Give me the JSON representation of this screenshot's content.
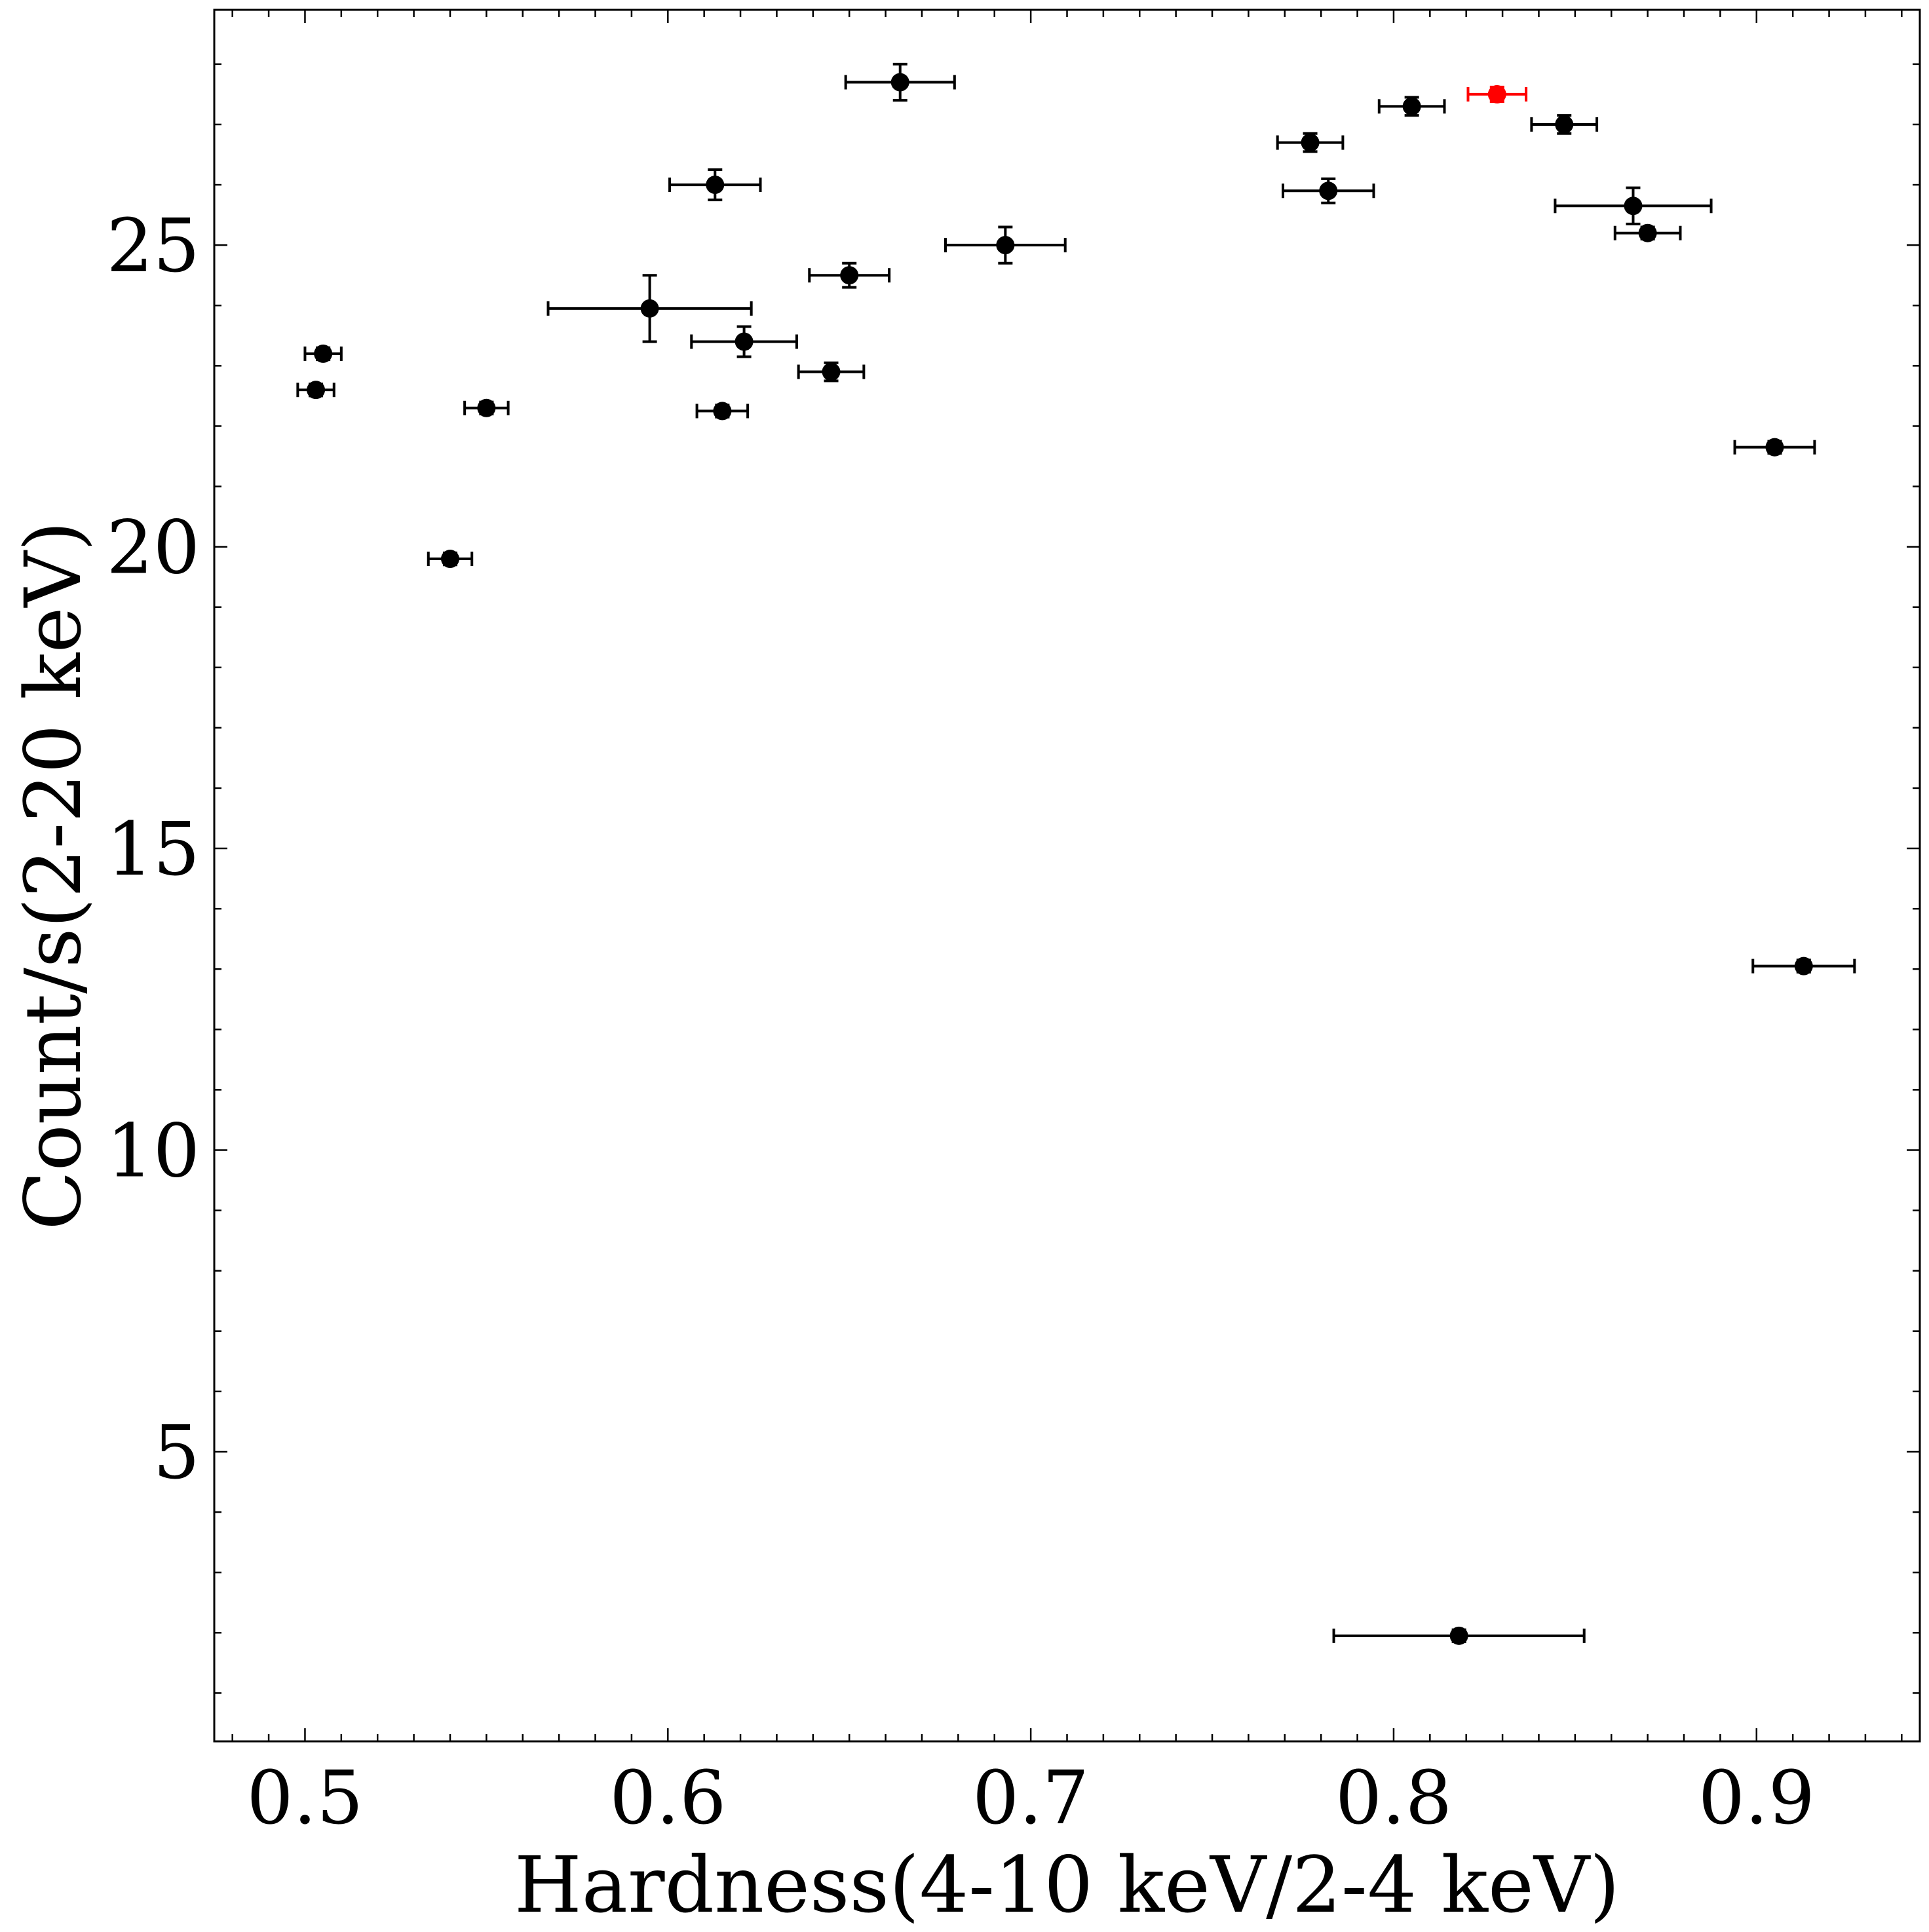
{
  "chart_data": {
    "type": "scatter",
    "title": "",
    "xlabel": "Hardness(4-10 keV/2-4 keV)",
    "ylabel": "Count/s(2-20 keV)",
    "xlim": [
      0.475,
      0.945
    ],
    "ylim": [
      0.2,
      28.9
    ],
    "grid": false,
    "legend": "none",
    "colors": {
      "default": "#000000",
      "highlight": "#ff0000"
    },
    "x_ticks": [
      0.5,
      0.6,
      0.7,
      0.8,
      0.9
    ],
    "x_tick_labels": [
      "0.5",
      "0.6",
      "0.7",
      "0.8",
      "0.9"
    ],
    "y_ticks": [
      5,
      10,
      15,
      20,
      25
    ],
    "y_tick_labels": [
      "5",
      "10",
      "15",
      "20",
      "25"
    ],
    "points": [
      {
        "x": 0.505,
        "y": 23.2,
        "xerr": 0.005,
        "yerr": 0.1,
        "highlight": false
      },
      {
        "x": 0.503,
        "y": 22.6,
        "xerr": 0.005,
        "yerr": 0.1,
        "highlight": false
      },
      {
        "x": 0.55,
        "y": 22.3,
        "xerr": 0.006,
        "yerr": 0.1,
        "highlight": false
      },
      {
        "x": 0.54,
        "y": 19.8,
        "xerr": 0.006,
        "yerr": 0.1,
        "highlight": false
      },
      {
        "x": 0.595,
        "y": 23.95,
        "xerr": 0.028,
        "yerr": 0.55,
        "highlight": false
      },
      {
        "x": 0.613,
        "y": 26.0,
        "xerr": 0.0125,
        "yerr": 0.25,
        "highlight": false
      },
      {
        "x": 0.621,
        "y": 23.4,
        "xerr": 0.0145,
        "yerr": 0.25,
        "highlight": false
      },
      {
        "x": 0.615,
        "y": 22.25,
        "xerr": 0.007,
        "yerr": 0.1,
        "highlight": false
      },
      {
        "x": 0.645,
        "y": 22.9,
        "xerr": 0.009,
        "yerr": 0.15,
        "highlight": false
      },
      {
        "x": 0.65,
        "y": 24.5,
        "xerr": 0.011,
        "yerr": 0.2,
        "highlight": false
      },
      {
        "x": 0.664,
        "y": 27.7,
        "xerr": 0.015,
        "yerr": 0.3,
        "highlight": false
      },
      {
        "x": 0.693,
        "y": 25.0,
        "xerr": 0.0165,
        "yerr": 0.3,
        "highlight": false
      },
      {
        "x": 0.777,
        "y": 26.7,
        "xerr": 0.009,
        "yerr": 0.15,
        "highlight": false
      },
      {
        "x": 0.782,
        "y": 25.9,
        "xerr": 0.0125,
        "yerr": 0.2,
        "highlight": false
      },
      {
        "x": 0.805,
        "y": 27.3,
        "xerr": 0.009,
        "yerr": 0.15,
        "highlight": false
      },
      {
        "x": 0.8285,
        "y": 27.5,
        "xerr": 0.008,
        "yerr": 0.12,
        "highlight": true
      },
      {
        "x": 0.847,
        "y": 27.0,
        "xerr": 0.009,
        "yerr": 0.15,
        "highlight": false
      },
      {
        "x": 0.866,
        "y": 25.65,
        "xerr": 0.0215,
        "yerr": 0.3,
        "highlight": false
      },
      {
        "x": 0.87,
        "y": 25.2,
        "xerr": 0.009,
        "yerr": 0.1,
        "highlight": false
      },
      {
        "x": 0.905,
        "y": 21.65,
        "xerr": 0.011,
        "yerr": 0.1,
        "highlight": false
      },
      {
        "x": 0.913,
        "y": 13.05,
        "xerr": 0.014,
        "yerr": 0.1,
        "highlight": false
      },
      {
        "x": 0.818,
        "y": 1.95,
        "xerr": 0.0345,
        "yerr": 0.1,
        "highlight": false
      }
    ]
  }
}
